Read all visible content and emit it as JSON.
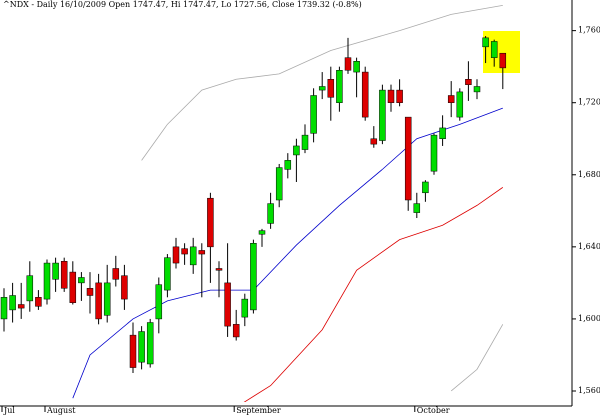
{
  "chart_data": {
    "type": "candlestick",
    "title": "^NDX - Daily 16/10/2009 Open 1747.47, Hi 1747.47, Lo 1727.56, Close 1739.32 (-0.8%)",
    "categories": [
      "Jul",
      null,
      null,
      null,
      null,
      "August",
      null,
      null,
      null,
      null,
      null,
      null,
      null,
      null,
      null,
      null,
      null,
      null,
      null,
      null,
      null,
      null,
      null,
      null,
      null,
      null,
      null,
      "September",
      null,
      null,
      null,
      null,
      null,
      null,
      null,
      null,
      null,
      null,
      null,
      null,
      null,
      null,
      null,
      null,
      null,
      null,
      null,
      null,
      "October",
      null,
      null,
      null,
      null,
      null,
      null,
      null,
      null,
      null,
      null
    ],
    "open": [
      1600,
      1605,
      1608,
      1610,
      1612,
      1611,
      1622,
      1632,
      1626,
      1620,
      1617,
      1620,
      1602,
      1628,
      1624,
      1591,
      1576,
      1575,
      1600,
      1616,
      1640,
      1639,
      1630,
      1638,
      1667,
      1628,
      1620,
      1597,
      1601,
      1605,
      1647,
      1653,
      1666,
      1683,
      1691,
      1694,
      1703,
      1727,
      1733,
      1720,
      1745,
      1737,
      1737,
      1700,
      1699,
      1727,
      1727,
      1712,
      1659,
      1670,
      1682,
      1700,
      1724,
      1712,
      1733,
      1726,
      1751,
      1745,
      1747.47
    ],
    "high": [
      1617,
      1620,
      1620,
      1632,
      1616,
      1633,
      1634,
      1634,
      1632,
      1626,
      1626,
      1625,
      1630,
      1635,
      1630,
      1598,
      1596,
      1600,
      1623,
      1636,
      1645,
      1642,
      1645,
      1642,
      1670,
      1632,
      1642,
      1605,
      1614,
      1644,
      1650,
      1670,
      1686,
      1692,
      1700,
      1708,
      1728,
      1737,
      1740,
      1740,
      1756,
      1745,
      1740,
      1707,
      1730,
      1730,
      1733,
      1712,
      1670,
      1677,
      1703,
      1713,
      1732,
      1728,
      1743,
      1733,
      1757,
      1755,
      1747.47
    ],
    "low": [
      1593,
      1598,
      1600,
      1604,
      1605,
      1608,
      1615,
      1615,
      1608,
      1610,
      1603,
      1597,
      1598,
      1618,
      1605,
      1570,
      1572,
      1573,
      1592,
      1612,
      1628,
      1630,
      1625,
      1612,
      1620,
      1612,
      1590,
      1588,
      1596,
      1603,
      1640,
      1650,
      1662,
      1678,
      1676,
      1692,
      1698,
      1722,
      1710,
      1715,
      1736,
      1723,
      1710,
      1695,
      1697,
      1715,
      1718,
      1660,
      1656,
      1665,
      1680,
      1696,
      1712,
      1710,
      1721,
      1722,
      1742,
      1740,
      1727.56
    ],
    "close": [
      1612,
      1613,
      1606,
      1624,
      1607,
      1631,
      1631,
      1617,
      1609,
      1623,
      1613,
      1600,
      1620,
      1622,
      1611,
      1573,
      1593,
      1598,
      1619,
      1634,
      1631,
      1636,
      1640,
      1636,
      1640,
      1627,
      1596,
      1590,
      1611,
      1642,
      1649,
      1664,
      1684,
      1688,
      1696,
      1702,
      1724,
      1729,
      1723,
      1738,
      1738,
      1743,
      1712,
      1697,
      1727,
      1720,
      1720,
      1666,
      1664,
      1676,
      1702,
      1706,
      1720,
      1726,
      1730,
      1729,
      1756,
      1754,
      1739.32
    ],
    "up_color": "#00dd00",
    "down_color": "#dd0000",
    "lines": [
      {
        "color": "#0000cc",
        "x": [
          8,
          10,
          15,
          19,
          24,
          29,
          34,
          39,
          44,
          48,
          53,
          58
        ],
        "values": [
          1556,
          1580,
          1600,
          1610,
          1616,
          1616,
          1641,
          1663,
          1683,
          1700,
          1708,
          1717
        ]
      },
      {
        "color": "#dd0000",
        "x": [
          27,
          31,
          37,
          41,
          46,
          51,
          55,
          58
        ],
        "values": [
          1551,
          1563,
          1594,
          1627,
          1644,
          1652,
          1663,
          1673
        ]
      },
      {
        "color": "#aaaaaa",
        "x": [
          16,
          19,
          23,
          27,
          32,
          38,
          46,
          52,
          58
        ],
        "values": [
          1688,
          1708,
          1727,
          1733,
          1736,
          1749,
          1760,
          1769,
          1774
        ]
      },
      {
        "color": "#aaaaaa",
        "x": [
          52,
          55,
          58
        ],
        "values": [
          1560,
          1572,
          1597
        ]
      }
    ],
    "ylim": [
      1555,
      1777
    ],
    "yticks": [
      {
        "value": 1560,
        "label": "1,560.00"
      },
      {
        "value": 1600,
        "label": "1,600.00"
      },
      {
        "value": 1640,
        "label": "1,640.00"
      },
      {
        "value": 1680,
        "label": "1,680.00"
      },
      {
        "value": 1720,
        "label": "1,720.00"
      },
      {
        "value": 1760,
        "label": "1,760.00"
      }
    ]
  }
}
